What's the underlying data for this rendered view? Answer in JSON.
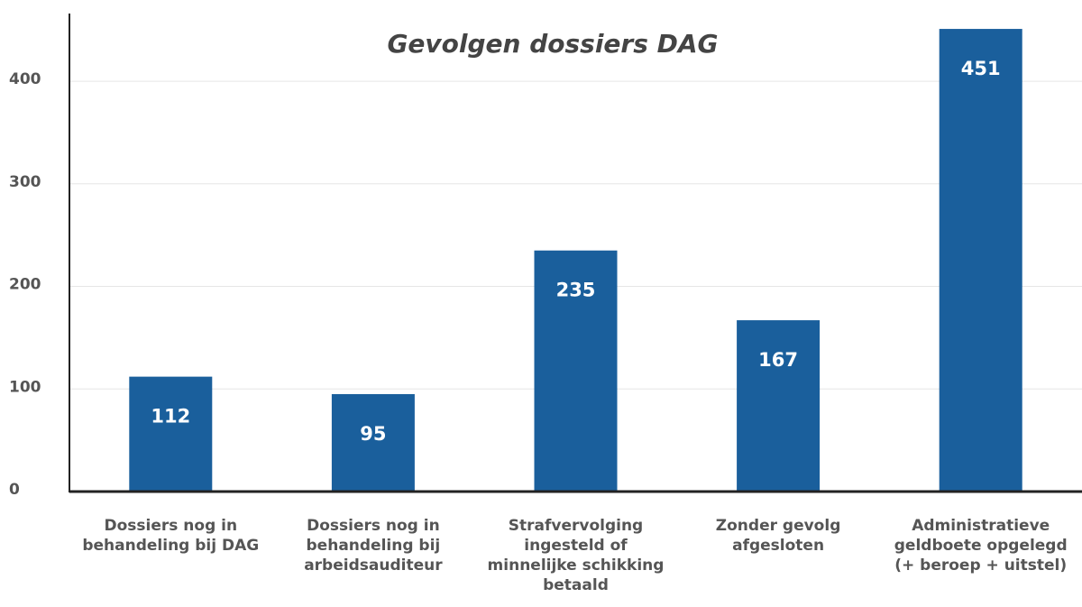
{
  "chart_data": {
    "type": "bar",
    "title": "Gevolgen dossiers DAG",
    "categories": [
      "Dossiers nog in\nbehandeling bij DAG",
      "Dossiers nog in\nbehandeling bij\narbeidsauditeur",
      "Strafvervolging\ningesteld of\nminnelijke schikking\nbetaald",
      "Zonder gevolg\nafgesloten",
      "Administratieve\ngeldboete opgelegd\n(+ beroep + uitstel)"
    ],
    "values": [
      112,
      95,
      235,
      167,
      451
    ],
    "color": "#1a5f9c",
    "ylim": [
      0,
      466
    ],
    "yticks": [
      0,
      100,
      200,
      300,
      400
    ],
    "grid": true
  }
}
